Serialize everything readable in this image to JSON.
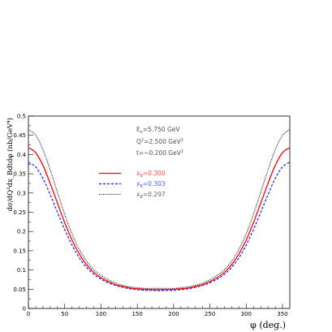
{
  "chart_data": {
    "type": "line",
    "title": "",
    "xlabel": "φ (deg.)",
    "ylabel": "dσ/dQ²dx_Bdtdφ (nb/GeV⁴)",
    "xlim": [
      0,
      360
    ],
    "ylim": [
      0,
      0.5
    ],
    "xticks": [
      0,
      50,
      100,
      150,
      200,
      250,
      300,
      350
    ],
    "yticks": [
      0,
      0.05,
      0.1,
      0.15,
      0.2,
      0.25,
      0.3,
      0.35,
      0.4,
      0.45,
      0.5
    ],
    "grid": false,
    "legend_position": "top-center",
    "annotations": {
      "E": "E",
      "E_sub": "e",
      "E_val": "=5.750 GeV",
      "Q": "Q",
      "Q_sup": "2",
      "Q_val": "=2.500 GeV",
      "Q_unit_sup": "2",
      "t": "t=−0.200 GeV",
      "t_sup": "2"
    },
    "x": [
      0,
      10,
      20,
      30,
      40,
      50,
      60,
      70,
      80,
      90,
      100,
      110,
      120,
      130,
      140,
      150,
      160,
      170,
      180,
      190,
      200,
      210,
      220,
      230,
      240,
      250,
      260,
      270,
      280,
      290,
      300,
      310,
      320,
      330,
      340,
      350,
      360
    ],
    "series": [
      {
        "name_prefix": "x",
        "name_sub": "B",
        "name_val": "=0.300",
        "color": "#ff0000",
        "dash": "solid",
        "values": [
          0.418,
          0.405,
          0.372,
          0.325,
          0.274,
          0.223,
          0.178,
          0.142,
          0.114,
          0.094,
          0.08,
          0.07,
          0.062,
          0.057,
          0.053,
          0.051,
          0.05,
          0.049,
          0.049,
          0.049,
          0.05,
          0.051,
          0.053,
          0.057,
          0.062,
          0.07,
          0.08,
          0.094,
          0.114,
          0.142,
          0.178,
          0.223,
          0.274,
          0.325,
          0.372,
          0.405,
          0.418
        ]
      },
      {
        "name_prefix": "x",
        "name_sub": "B",
        "name_val": "=0.303",
        "color": "#1a1aff",
        "dash": "dashed",
        "values": [
          0.38,
          0.368,
          0.338,
          0.296,
          0.25,
          0.205,
          0.165,
          0.132,
          0.107,
          0.089,
          0.076,
          0.067,
          0.06,
          0.055,
          0.051,
          0.049,
          0.047,
          0.047,
          0.046,
          0.047,
          0.047,
          0.049,
          0.051,
          0.055,
          0.06,
          0.067,
          0.076,
          0.089,
          0.107,
          0.132,
          0.165,
          0.205,
          0.25,
          0.296,
          0.338,
          0.368,
          0.38
        ]
      },
      {
        "name_prefix": "x",
        "name_sub": "B",
        "name_val": "=0.297",
        "color": "#000000",
        "dash": "dotted",
        "values": [
          0.465,
          0.45,
          0.413,
          0.36,
          0.302,
          0.245,
          0.194,
          0.154,
          0.123,
          0.101,
          0.086,
          0.075,
          0.066,
          0.06,
          0.056,
          0.054,
          0.052,
          0.052,
          0.052,
          0.052,
          0.052,
          0.054,
          0.056,
          0.06,
          0.066,
          0.075,
          0.086,
          0.101,
          0.123,
          0.154,
          0.194,
          0.245,
          0.302,
          0.36,
          0.413,
          0.45,
          0.465
        ]
      }
    ]
  }
}
